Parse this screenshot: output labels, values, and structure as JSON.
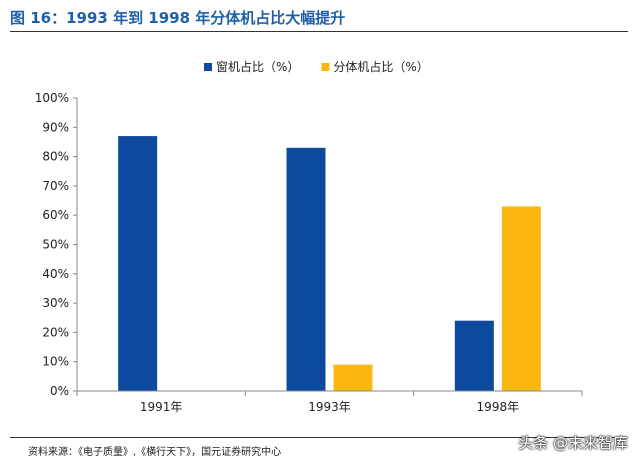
{
  "header": {
    "title": "图 16：1993 年到 1998 年分体机占比大幅提升"
  },
  "footer": {
    "source": "资料来源：《电子质量》,《横行天下》，国元证券研究中心",
    "watermark": "头条 @未来智库"
  },
  "chart_data": {
    "type": "bar",
    "categories": [
      "1991年",
      "1993年",
      "1998年"
    ],
    "series": [
      {
        "name": "窗机占比（%）",
        "values": [
          0.87,
          0.83,
          0.24
        ],
        "color": "#0d4a9e"
      },
      {
        "name": "分体机占比（%）",
        "values": [
          null,
          0.09,
          0.63
        ],
        "color": "#fbb710"
      }
    ],
    "ylim": [
      0,
      1
    ],
    "yticks": [
      "0%",
      "10%",
      "20%",
      "30%",
      "40%",
      "50%",
      "60%",
      "70%",
      "80%",
      "90%",
      "100%"
    ],
    "legend": "top-center",
    "grid": false
  }
}
